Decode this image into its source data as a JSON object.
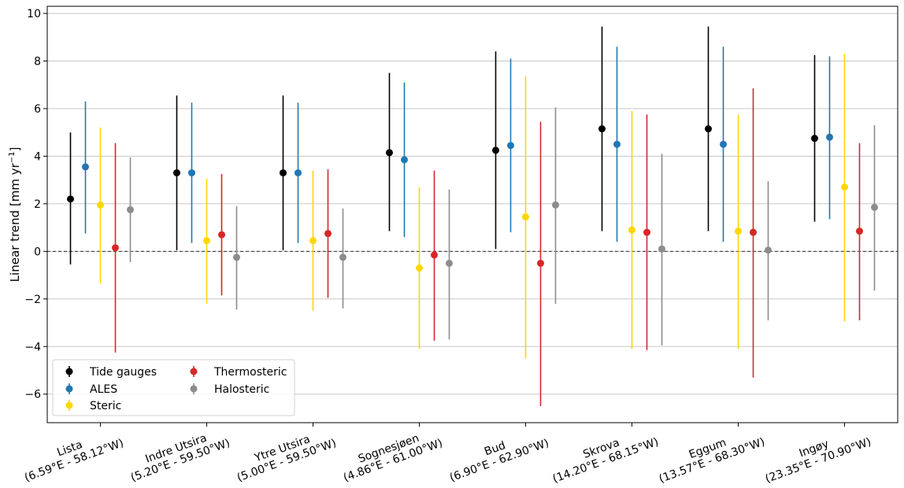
{
  "chart_data": {
    "type": "scatter",
    "ylabel": "Linear trend [mm yr",
    "ylabel_sup": "−1",
    "ylabel_close": "]",
    "ylim": [
      -7.2,
      10.3
    ],
    "yticks": [
      "−6",
      "−4",
      "−2",
      "0",
      "2",
      "4",
      "6",
      "8",
      "10"
    ],
    "ytick_values": [
      -6,
      -4,
      -2,
      0,
      2,
      4,
      6,
      8,
      10
    ],
    "grid": "horizontal",
    "zero_line": "dashed",
    "legend_position": "lower-left",
    "categories": [
      {
        "name": "Lista",
        "coords": "(6.59°E - 58.12°W)"
      },
      {
        "name": "Indre Utsira",
        "coords": "(5.20°E - 59.50°W)"
      },
      {
        "name": "Ytre Utsira",
        "coords": "(5.00°E - 59.50°W)"
      },
      {
        "name": "Sognesjøen",
        "coords": "(4.86°E - 61.00°W)"
      },
      {
        "name": "Bud",
        "coords": "(6.90°E - 62.90°W)"
      },
      {
        "name": "Skrova",
        "coords": "(14.20°E - 68.15°W)"
      },
      {
        "name": "Eggum",
        "coords": "(13.57°E - 68.30°W)"
      },
      {
        "name": "Ingøy",
        "coords": "(23.35°E - 70.90°W)"
      }
    ],
    "series": [
      {
        "name": "Tide gauges",
        "color": "#000000",
        "values": [
          2.2,
          3.3,
          3.3,
          4.15,
          4.25,
          5.15,
          5.15,
          4.75
        ],
        "lower": [
          -0.55,
          0.05,
          0.05,
          0.85,
          0.1,
          0.85,
          0.85,
          1.25
        ],
        "upper": [
          5.0,
          6.55,
          6.55,
          7.5,
          8.4,
          9.45,
          9.45,
          8.25
        ]
      },
      {
        "name": "ALES",
        "color": "#1f77b4",
        "values": [
          3.55,
          3.3,
          3.3,
          3.85,
          4.45,
          4.5,
          4.5,
          4.8
        ],
        "lower": [
          0.75,
          0.35,
          0.35,
          0.6,
          0.8,
          0.4,
          0.4,
          1.35
        ],
        "upper": [
          6.3,
          6.25,
          6.25,
          7.1,
          8.1,
          8.6,
          8.6,
          8.2
        ]
      },
      {
        "name": "Steric",
        "color": "#ffd700",
        "values": [
          1.95,
          0.45,
          0.45,
          -0.7,
          1.45,
          0.9,
          0.85,
          2.7
        ],
        "lower": [
          -1.35,
          -2.2,
          -2.5,
          -4.1,
          -4.5,
          -4.1,
          -4.1,
          -2.95
        ],
        "upper": [
          5.2,
          3.05,
          3.4,
          2.7,
          7.35,
          5.9,
          5.75,
          8.3
        ]
      },
      {
        "name": "Thermosteric",
        "color": "#d62728",
        "values": [
          0.15,
          0.7,
          0.75,
          -0.15,
          -0.5,
          0.8,
          0.8,
          0.85
        ],
        "lower": [
          -4.25,
          -1.85,
          -1.95,
          -3.75,
          -6.5,
          -4.15,
          -5.3,
          -2.9
        ],
        "upper": [
          4.55,
          3.25,
          3.45,
          3.4,
          5.45,
          5.75,
          6.85,
          4.55
        ]
      },
      {
        "name": "Halosteric",
        "color": "#8c8c8c",
        "values": [
          1.75,
          -0.25,
          -0.25,
          -0.5,
          1.95,
          0.1,
          0.05,
          1.85
        ],
        "lower": [
          -0.45,
          -2.45,
          -2.4,
          -3.7,
          -2.2,
          -3.95,
          -2.9,
          -1.65
        ],
        "upper": [
          3.95,
          1.9,
          1.8,
          2.6,
          6.05,
          4.1,
          2.95,
          5.3
        ]
      }
    ]
  }
}
